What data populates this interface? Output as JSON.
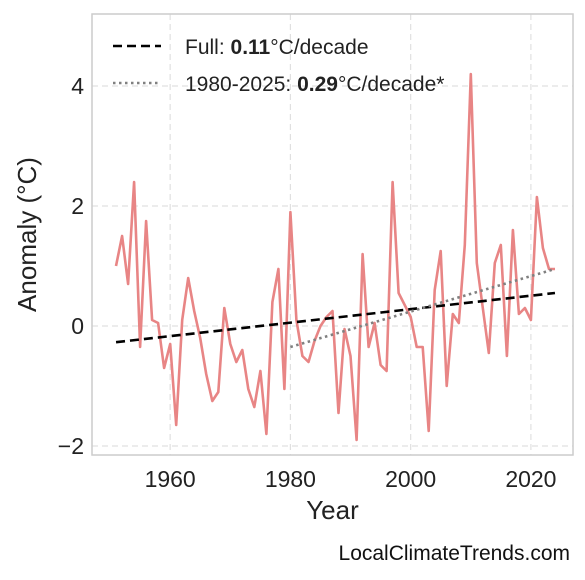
{
  "chart_data": {
    "type": "line",
    "xlabel": "Year",
    "ylabel": "Anomaly (°C)",
    "xlim": [
      1947,
      2027
    ],
    "ylim": [
      -2.15,
      5.2
    ],
    "x_ticks": [
      1960,
      1980,
      2000,
      2020
    ],
    "y_ticks": [
      -2,
      0,
      2,
      4
    ],
    "y_tick_labels": [
      "−2",
      "0",
      "2",
      "4"
    ],
    "grid": true,
    "legend_placement": "top-left",
    "series": [
      {
        "color": "#e88585",
        "x": [
          1951,
          1952,
          1953,
          1954,
          1955,
          1956,
          1957,
          1958,
          1959,
          1960,
          1961,
          1962,
          1963,
          1964,
          1965,
          1966,
          1967,
          1968,
          1969,
          1970,
          1971,
          1972,
          1973,
          1974,
          1975,
          1976,
          1977,
          1978,
          1979,
          1980,
          1981,
          1982,
          1983,
          1984,
          1985,
          1986,
          1987,
          1988,
          1989,
          1990,
          1991,
          1992,
          1993,
          1994,
          1995,
          1996,
          1997,
          1998,
          1999,
          2000,
          2001,
          2002,
          2003,
          2004,
          2005,
          2006,
          2007,
          2008,
          2009,
          2010,
          2011,
          2012,
          2013,
          2014,
          2015,
          2016,
          2017,
          2018,
          2019,
          2020,
          2021,
          2022,
          2023,
          2024
        ],
        "values": [
          1.0,
          1.5,
          0.7,
          2.4,
          -0.35,
          1.75,
          0.1,
          0.05,
          -0.7,
          -0.3,
          -1.65,
          0.1,
          0.8,
          0.25,
          -0.2,
          -0.8,
          -1.25,
          -1.1,
          0.3,
          -0.3,
          -0.6,
          -0.4,
          -1.05,
          -1.35,
          -0.75,
          -1.8,
          0.4,
          0.95,
          -1.05,
          1.9,
          0.1,
          -0.5,
          -0.6,
          -0.25,
          0.0,
          0.15,
          0.25,
          -1.45,
          -0.05,
          -0.5,
          -1.9,
          1.2,
          -0.35,
          0.05,
          -0.65,
          -0.75,
          2.4,
          0.55,
          0.35,
          0.15,
          -0.35,
          -0.35,
          -1.75,
          0.6,
          1.25,
          -1.0,
          0.2,
          0.05,
          1.35,
          4.2,
          1.05,
          0.3,
          -0.45,
          1.05,
          1.35,
          -0.5,
          1.6,
          0.2,
          0.3,
          0.1,
          2.15,
          1.3,
          0.95,
          0.95
        ]
      }
    ],
    "trends": [
      {
        "x": [
          1951,
          2024
        ],
        "values": [
          -0.27,
          0.55
        ],
        "style": "dashed",
        "color": "#000000",
        "label_prefix": "Full: ",
        "label_bold": "0.11",
        "label_suffix": "°C/decade"
      },
      {
        "x": [
          1980,
          2024
        ],
        "values": [
          -0.35,
          0.95
        ],
        "style": "dotted",
        "color": "#808080",
        "label_prefix": "1980-2025: ",
        "label_bold": "0.29",
        "label_suffix": "°C/decade*"
      }
    ]
  },
  "watermark": "LocalClimateTrends.com"
}
